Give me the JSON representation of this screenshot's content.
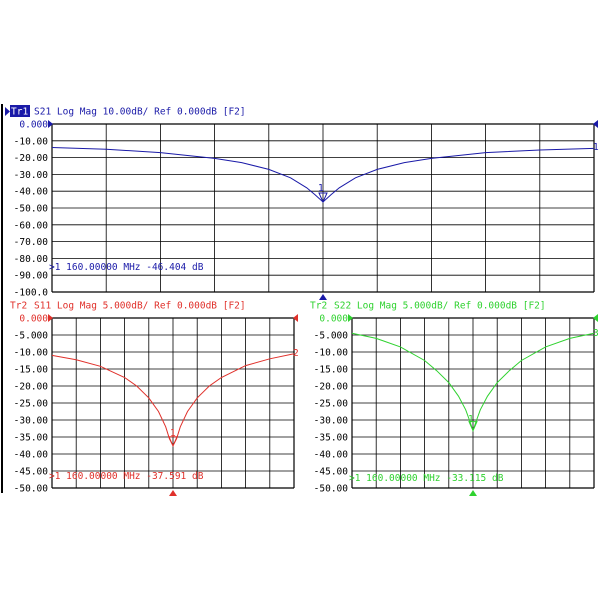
{
  "colors": {
    "tr1": "#1a1aa8",
    "tr2_s11": "#e0302a",
    "tr2_s22": "#2fd22f",
    "grid": "#000000",
    "background": "#ffffff",
    "tr1_badge_bg": "#1a1aa8",
    "tr1_badge_text": "#ffffff"
  },
  "chart_data": [
    {
      "type": "line",
      "trace_badge": "Tr1",
      "header": "S21 Log Mag 10.00dB/ Ref 0.000dB [F2]",
      "yticks": [
        "0.000",
        "-10.00",
        "-20.00",
        "-30.00",
        "-40.00",
        "-50.00",
        "-60.00",
        "-70.00",
        "-80.00",
        "-90.00",
        "-100.0"
      ],
      "ylim": [
        -100,
        0
      ],
      "x": [
        -5,
        -4,
        -3,
        -2,
        -1.5,
        -1,
        -0.6,
        -0.3,
        -0.15,
        0,
        0.15,
        0.3,
        0.6,
        1,
        1.5,
        2,
        3,
        4,
        5
      ],
      "series": [
        {
          "values": [
            -14,
            -15,
            -17,
            -20.5,
            -23,
            -27,
            -32,
            -38,
            -42,
            -46.4,
            -42,
            -38,
            -32,
            -27,
            -23,
            -20.5,
            -17,
            -15.5,
            -14.5
          ]
        }
      ],
      "marker": {
        "number": "1",
        "x": 0,
        "y": -46.404,
        "readout": ">1  160.00000 MHz -46.404 dB",
        "right_label": "1"
      }
    },
    {
      "type": "line",
      "trace_badge": "Tr2",
      "header": "S11 Log Mag 5.000dB/ Ref 0.000dB [F2]",
      "yticks": [
        "0.000",
        "-5.000",
        "-10.00",
        "-15.00",
        "-20.00",
        "-25.00",
        "-30.00",
        "-35.00",
        "-40.00",
        "-45.00",
        "-50.00"
      ],
      "ylim": [
        -50,
        0
      ],
      "x": [
        -5,
        -4,
        -3,
        -2,
        -1.5,
        -1,
        -0.6,
        -0.3,
        -0.15,
        0,
        0.15,
        0.3,
        0.6,
        1,
        1.5,
        2,
        3,
        4,
        5
      ],
      "series": [
        {
          "values": [
            -11,
            -12.3,
            -14.2,
            -17.5,
            -20,
            -23.5,
            -27.5,
            -32,
            -35.5,
            -37.6,
            -35.5,
            -32,
            -27.5,
            -23.5,
            -20,
            -17.5,
            -14,
            -12,
            -10.5
          ]
        }
      ],
      "marker": {
        "number": "1",
        "x": 0,
        "y": -37.591,
        "readout": ">1  160.00000 MHz -37.591 dB",
        "right_label": "2"
      }
    },
    {
      "type": "line",
      "trace_badge": "Tr2",
      "header": "S22 Log Mag 5.000dB/ Ref 0.000dB [F2]",
      "yticks": [
        "0.000",
        "-5.000",
        "-10.00",
        "-15.00",
        "-20.00",
        "-25.00",
        "-30.00",
        "-35.00",
        "-40.00",
        "-45.00",
        "-50.00"
      ],
      "ylim": [
        -50,
        0
      ],
      "x": [
        -5,
        -4,
        -3,
        -2,
        -1.5,
        -1,
        -0.6,
        -0.3,
        -0.15,
        0,
        0.15,
        0.3,
        0.6,
        1,
        1.5,
        2,
        3,
        4,
        5
      ],
      "series": [
        {
          "values": [
            -4.5,
            -6,
            -8.5,
            -12.5,
            -15.5,
            -19,
            -23,
            -27,
            -30,
            -33.1,
            -30,
            -27,
            -23,
            -19,
            -15.5,
            -12.5,
            -8.5,
            -6,
            -4.5
          ]
        }
      ],
      "marker": {
        "number": "1",
        "x": 0,
        "y": -33.115,
        "readout": ">1  160.00000 MHz -33.115 dB",
        "right_label": "3"
      }
    }
  ]
}
